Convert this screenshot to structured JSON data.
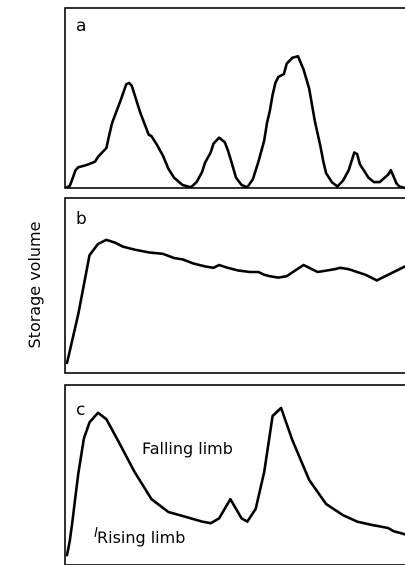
{
  "figure": {
    "y_axis_label": "Storage volume"
  },
  "chart_data": [
    {
      "type": "line",
      "panel": "a",
      "axis_ticks": false,
      "x": [
        0,
        0.05,
        0.1,
        0.15,
        0.2,
        0.3,
        0.38,
        0.45,
        0.5,
        0.55,
        0.7,
        0.75,
        0.8,
        0.95,
        1.05,
        1.1,
        1.15,
        1.3,
        1.45,
        1.5,
        1.6,
        1.7,
        1.8,
        1.9,
        2.05,
        2.2,
        2.3,
        2.4,
        2.45,
        2.55,
        2.6,
        2.7,
        2.8,
        2.85,
        2.9,
        3.0,
        3.1,
        3.2,
        3.3,
        3.4,
        3.5,
        3.55,
        3.6,
        3.65,
        3.7,
        3.75,
        3.85,
        3.9,
        4.0,
        4.1,
        4.2,
        4.3,
        4.4,
        4.5,
        4.55,
        4.6,
        4.7,
        4.8,
        4.9,
        5.0,
        5.1,
        5.15,
        5.2,
        5.35,
        5.45,
        5.55,
        5.7,
        5.75,
        5.85,
        5.9,
        6.0
      ],
      "y": [
        0.5,
        1.5,
        6.5,
        12,
        14,
        15,
        16,
        17,
        18,
        21,
        27,
        36,
        44,
        59,
        70,
        71,
        69,
        51,
        36,
        35,
        29,
        22,
        13,
        7,
        2,
        0.5,
        4,
        11,
        17,
        24,
        30,
        34,
        31,
        26,
        20,
        7,
        2,
        0.5,
        6,
        18,
        32,
        44,
        52,
        63,
        71,
        75,
        77,
        84,
        88,
        89,
        80,
        67,
        45,
        28,
        18,
        10,
        4,
        1,
        5,
        12,
        24,
        23,
        16,
        7,
        4,
        4,
        9,
        12,
        3,
        1,
        0
      ],
      "y_range": [
        0,
        100
      ],
      "x_range": [
        0,
        6
      ]
    },
    {
      "type": "line",
      "panel": "b",
      "axis_ticks": false,
      "x": [
        0,
        0.2,
        0.4,
        0.55,
        0.7,
        0.85,
        1.0,
        1.2,
        1.45,
        1.7,
        1.9,
        2.05,
        2.25,
        2.45,
        2.6,
        2.7,
        2.85,
        3.05,
        3.25,
        3.4,
        3.5,
        3.6,
        3.75,
        3.9,
        4.05,
        4.2,
        4.3,
        4.45,
        4.6,
        4.75,
        4.85,
        5.0,
        5.15,
        5.3,
        5.4,
        5.5,
        5.6,
        5.75,
        5.9,
        6.0
      ],
      "y": [
        5,
        40,
        82,
        90,
        93,
        91,
        88,
        86,
        84,
        83,
        80,
        79,
        76,
        74,
        73,
        75,
        73,
        71,
        70,
        70,
        68,
        67,
        66,
        67,
        71,
        75,
        73,
        70,
        71,
        72,
        73,
        72,
        70,
        68,
        66,
        64,
        66,
        69,
        72,
        74
      ],
      "y_range": [
        0,
        100
      ],
      "x_range": [
        0,
        6
      ]
    },
    {
      "type": "line",
      "panel": "c",
      "axis_ticks": false,
      "x": [
        0,
        0.05,
        0.1,
        0.15,
        0.2,
        0.25,
        0.3,
        0.4,
        0.55,
        0.7,
        0.9,
        1.2,
        1.5,
        1.8,
        2.1,
        2.4,
        2.55,
        2.7,
        2.8,
        2.9,
        3.0,
        3.1,
        3.2,
        3.35,
        3.5,
        3.65,
        3.8,
        4.0,
        4.3,
        4.6,
        4.9,
        5.15,
        5.4,
        5.55,
        5.7,
        5.8,
        5.9,
        6.0
      ],
      "y": [
        3,
        12,
        25,
        40,
        54,
        65,
        76,
        86,
        92,
        88,
        75,
        55,
        38,
        30,
        27,
        24,
        23,
        26,
        32,
        38,
        32,
        26,
        24,
        32,
        55,
        90,
        95,
        75,
        50,
        35,
        28,
        24,
        22,
        21,
        20,
        18,
        17,
        16
      ],
      "y_range": [
        0,
        100
      ],
      "x_range": [
        0,
        6
      ],
      "annotations": [
        {
          "id": "falling",
          "text": "Falling limb",
          "at_x": 0.6,
          "at_y": 85
        },
        {
          "id": "rising",
          "text": "Rising limb",
          "at_x": 0.2,
          "at_y": 15
        }
      ]
    }
  ]
}
